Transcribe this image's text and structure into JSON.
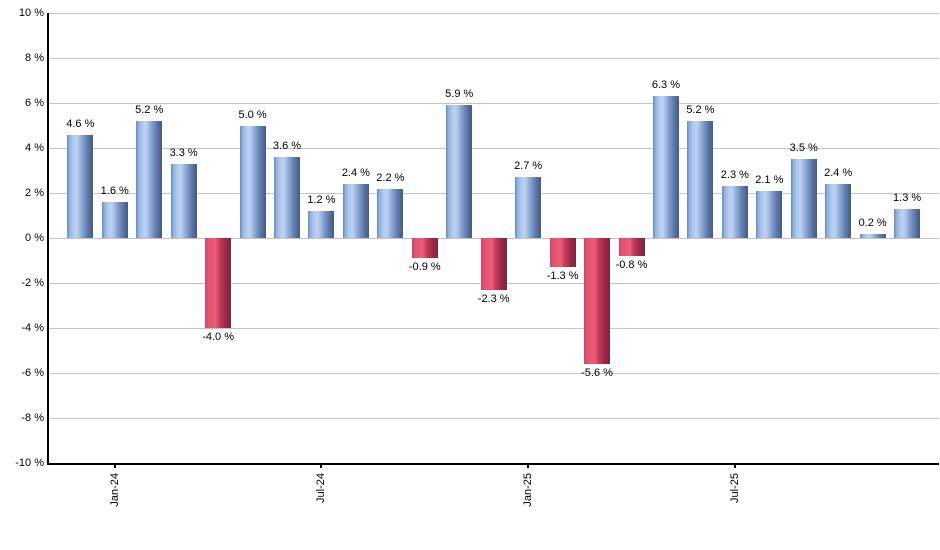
{
  "chart_data": {
    "type": "bar",
    "title": "",
    "xlabel": "",
    "ylabel": "",
    "unit": "%",
    "ylim": [
      -10,
      10
    ],
    "ytick_step": 2,
    "grid": true,
    "legend": false,
    "y_tick_labels": [
      "10 %",
      "8 %",
      "6 %",
      "4 %",
      "2 %",
      "0 %",
      "-2 %",
      "-4 %",
      "-6 %",
      "-8 %",
      "-10 %"
    ],
    "values": [
      4.6,
      1.6,
      5.2,
      3.3,
      -4.0,
      5.0,
      3.6,
      1.2,
      2.4,
      2.2,
      -0.9,
      5.9,
      -2.3,
      2.7,
      -1.3,
      -5.6,
      -0.8,
      6.3,
      5.2,
      2.3,
      2.1,
      3.5,
      2.4,
      0.2,
      1.3
    ],
    "bar_labels": [
      "4.6 %",
      "1.6 %",
      "5.2 %",
      "3.3 %",
      "-4.0 %",
      "5.0 %",
      "3.6 %",
      "1.2 %",
      "2.4 %",
      "2.2 %",
      "-0.9 %",
      "5.9 %",
      "-2.3 %",
      "2.7 %",
      "-1.3 %",
      "-5.6 %",
      "-0.8 %",
      "6.3 %",
      "5.2 %",
      "2.3 %",
      "2.1 %",
      "3.5 %",
      "2.4 %",
      "0.2 %",
      "1.3 %"
    ],
    "x_ticks": [
      {
        "bar_index": 1,
        "label": "Jan-24"
      },
      {
        "bar_index": 7,
        "label": "Jul-24"
      },
      {
        "bar_index": 13,
        "label": "Jan-25"
      },
      {
        "bar_index": 19,
        "label": "Jul-25"
      }
    ],
    "colors": {
      "background": "#FFFFFF",
      "axis": "#000000",
      "gridline": "#C4C4C4",
      "text": "#000000",
      "positive_bar": "#7AA0D4",
      "negative_bar": "#D04A68",
      "positive_gradient": {
        "stops": [
          "#6A87BC",
          "#93B1DE",
          "#B2CBEE",
          "#BCD2F2",
          "#90ACD8",
          "#6782B0",
          "#4E6898",
          "#415C8A"
        ],
        "positions": [
          0,
          10,
          25,
          38,
          55,
          75,
          90,
          100
        ]
      },
      "negative_gradient": {
        "stops": [
          "#C24B66",
          "#DE5470",
          "#EA5674",
          "#ED5F7B",
          "#C43A59",
          "#9C2747",
          "#84203F"
        ],
        "positions": [
          0,
          12,
          30,
          40,
          58,
          80,
          100
        ]
      }
    }
  }
}
